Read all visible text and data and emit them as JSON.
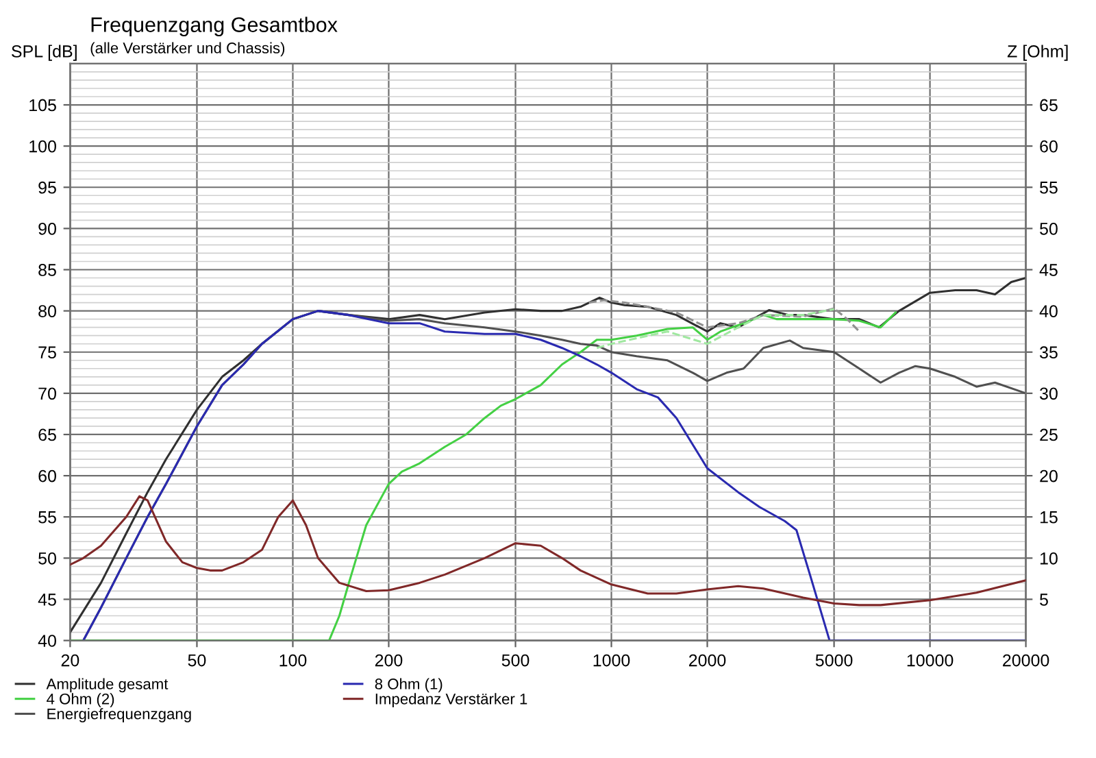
{
  "chart_data": {
    "type": "line",
    "title": "Frequenzgang Gesamtbox",
    "subtitle": "(alle Verstärker und Chassis)",
    "ylabel": "SPL [dB]",
    "y2label": "Z [Ohm]",
    "log": "x",
    "xlim": [
      20,
      20000
    ],
    "xticks": [
      20,
      50,
      100,
      200,
      500,
      1000,
      2000,
      5000,
      10000,
      20000
    ],
    "ylim": [
      40,
      110
    ],
    "yticks": [
      40,
      45,
      50,
      55,
      60,
      65,
      70,
      75,
      80,
      85,
      90,
      95,
      100,
      105
    ],
    "y2lim": [
      0,
      70
    ],
    "y2ticks": [
      5,
      10,
      15,
      20,
      25,
      30,
      35,
      40,
      45,
      50,
      55,
      60,
      65
    ],
    "grid": true,
    "legend": "bottom",
    "marker": "none",
    "line_style": "solid",
    "series": [
      {
        "name": "Amplitude gesamt",
        "color": "#303030",
        "x": [
          20,
          25,
          30,
          35,
          40,
          50,
          60,
          70,
          80,
          100,
          120,
          150,
          200,
          250,
          300,
          400,
          500,
          600,
          700,
          800,
          918,
          1000,
          1100,
          1300,
          1600,
          2000,
          2200,
          2500,
          3130,
          3600,
          4000,
          5000,
          6000,
          6920,
          8000,
          10000,
          12000,
          14000,
          16000,
          18000,
          20000
        ],
        "values": [
          41,
          47,
          53,
          58,
          62,
          68,
          72,
          74,
          76,
          79,
          80,
          79.5,
          79,
          79.5,
          79,
          79.8,
          80.2,
          80,
          80,
          80.5,
          81.6,
          81,
          80.7,
          80.5,
          79.5,
          77.5,
          78.5,
          78,
          80.1,
          79.5,
          79.5,
          79,
          79,
          78,
          80,
          82.2,
          82.5,
          82.5,
          82,
          83.5,
          84
        ]
      },
      {
        "name": "4 Ohm (2)",
        "color": "#44d044",
        "x": [
          20,
          130,
          140,
          150,
          170,
          200,
          220,
          250,
          300,
          350,
          400,
          450,
          500,
          600,
          700,
          800,
          900,
          1000,
          1200,
          1500,
          1800,
          2000,
          2200,
          2600,
          3000,
          3300,
          4000,
          5000,
          6000,
          7000,
          7800
        ],
        "values": [
          40,
          40,
          43,
          47,
          54,
          59,
          60.5,
          61.5,
          63.5,
          65,
          67,
          68.5,
          69.3,
          71,
          73.5,
          75,
          76.5,
          76.5,
          77,
          77.8,
          78,
          76.5,
          77.5,
          78.5,
          79.5,
          79,
          79,
          79,
          78.8,
          78,
          79.8
        ]
      },
      {
        "name": "Energiefrequenzgang",
        "color": "#505050",
        "x": [
          22,
          25,
          30,
          35,
          40,
          50,
          60,
          70,
          80,
          100,
          120,
          150,
          200,
          250,
          300,
          400,
          500,
          600,
          700,
          800,
          900,
          1000,
          1200,
          1500,
          1800,
          2000,
          2300,
          2600,
          3000,
          3630,
          4000,
          5000,
          6000,
          7000,
          8000,
          9000,
          10000,
          12000,
          14000,
          16000,
          20000
        ],
        "values": [
          40,
          44,
          50,
          55,
          59,
          66,
          71,
          73.5,
          76,
          79,
          80,
          79.5,
          78.8,
          79,
          78.5,
          78,
          77.5,
          77,
          76.5,
          76,
          75.8,
          75,
          74.5,
          74,
          72.5,
          71.5,
          72.5,
          73,
          75.5,
          76.4,
          75.5,
          75,
          73,
          71.3,
          72.5,
          73.3,
          73,
          72,
          70.8,
          71.3,
          70
        ]
      },
      {
        "name": "8 Ohm (1)",
        "color": "#2a2ab0",
        "x": [
          22,
          25,
          30,
          35,
          40,
          50,
          60,
          70,
          80,
          100,
          120,
          150,
          200,
          250,
          300,
          400,
          500,
          600,
          700,
          800,
          900,
          1000,
          1200,
          1400,
          1600,
          2000,
          2500,
          2917,
          3500,
          3810,
          4200,
          4840,
          20000
        ],
        "values": [
          40,
          44,
          50,
          55,
          59,
          66,
          71,
          73.5,
          76,
          79,
          80,
          79.5,
          78.5,
          78.5,
          77.5,
          77.2,
          77.2,
          76.5,
          75.5,
          74.5,
          73.5,
          72.5,
          70.5,
          69.5,
          67,
          60.9,
          58,
          56.2,
          54.5,
          53.4,
          48,
          40,
          40
        ]
      },
      {
        "name": "Impedanz Verstärker 1",
        "color": "#802828",
        "axis": "y2",
        "x": [
          20,
          22,
          25,
          30,
          33,
          35,
          40,
          45,
          50,
          55,
          60,
          70,
          80,
          90,
          100,
          110,
          120,
          140,
          170,
          200,
          250,
          300,
          400,
          500,
          600,
          700,
          800,
          1000,
          1300,
          1600,
          2000,
          2500,
          3000,
          4000,
          5000,
          6000,
          7000,
          10000,
          14000,
          20000
        ],
        "values": [
          9.2,
          10,
          11.5,
          15,
          17.5,
          17,
          12,
          9.5,
          8.8,
          8.5,
          8.5,
          9.5,
          11,
          15,
          17,
          14,
          10,
          7,
          6,
          6.1,
          7,
          8,
          10,
          11.8,
          11.5,
          10,
          8.5,
          6.8,
          5.7,
          5.7,
          6.2,
          6.6,
          6.3,
          5.2,
          4.5,
          4.3,
          4.3,
          4.9,
          5.8,
          7.3
        ]
      },
      {
        "color": "#909090",
        "line_style": "dashed",
        "x": [
          850,
          950,
          1100,
          1300,
          1600,
          2000,
          2500,
          3000,
          4000,
          5000,
          5500,
          6000
        ],
        "values": [
          81,
          81.3,
          81,
          80.5,
          79.8,
          78,
          78.5,
          79.5,
          79.3,
          80.3,
          79,
          77.5
        ]
      },
      {
        "color": "#a0e8a0",
        "line_style": "dashed",
        "x": [
          900,
          1000,
          1500,
          2000,
          2500,
          3000,
          4000,
          5000
        ],
        "values": [
          75.5,
          76,
          77.5,
          76,
          78,
          79.5,
          79.5,
          80.2
        ]
      }
    ]
  }
}
